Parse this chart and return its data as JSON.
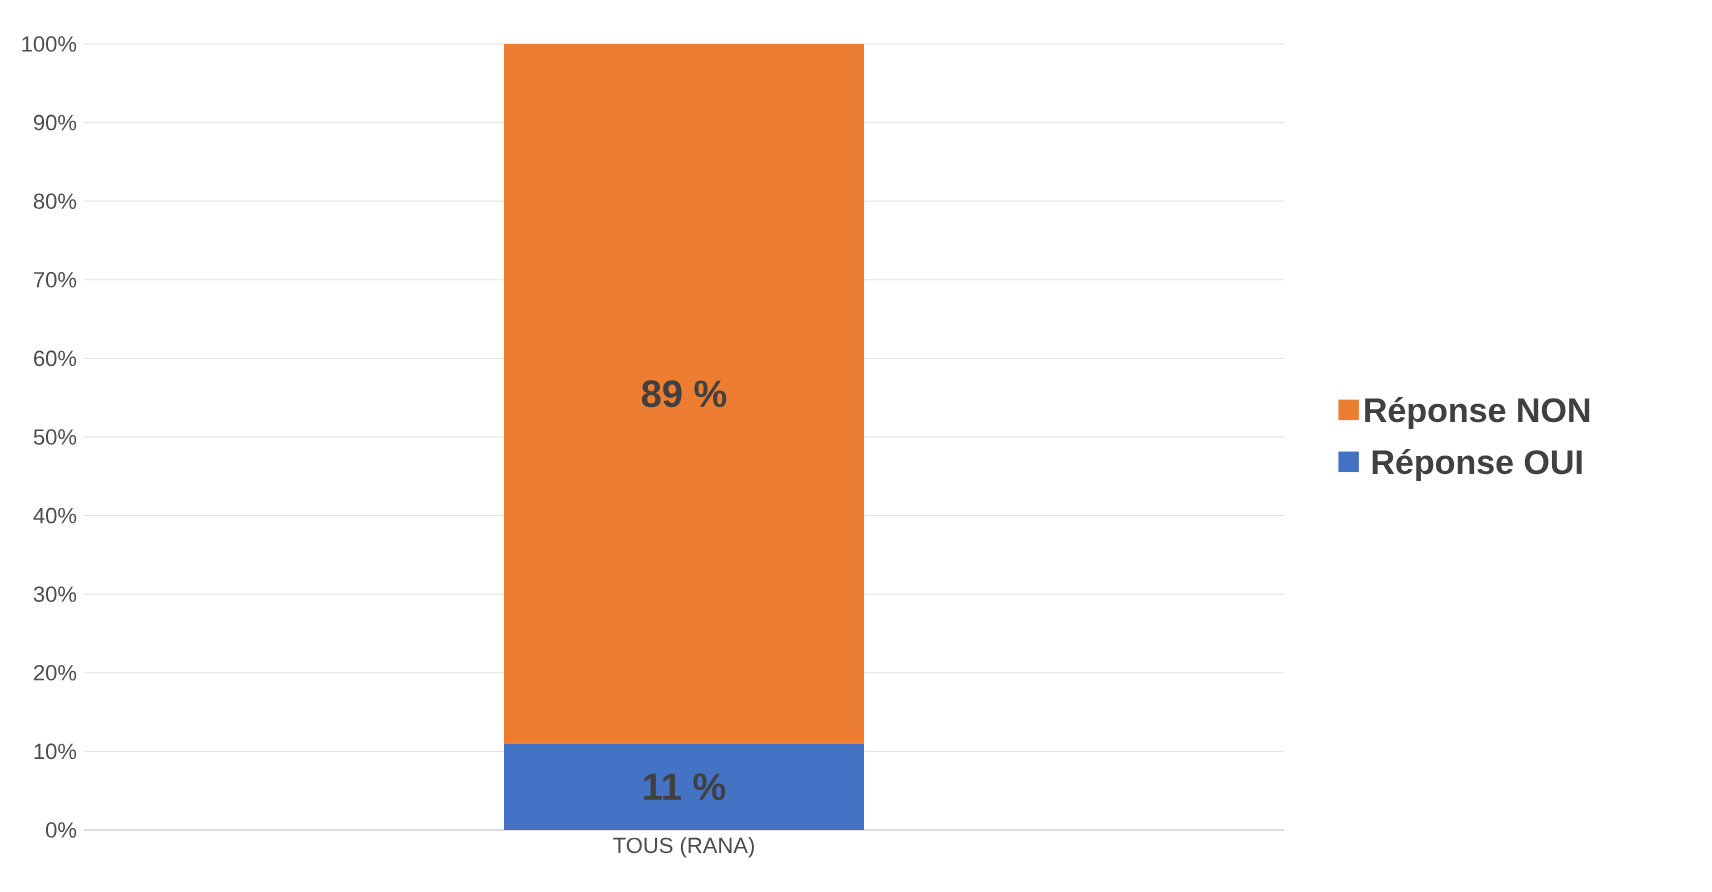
{
  "chart_data": {
    "type": "bar",
    "stacked": true,
    "categories": [
      "TOUS (RANA)"
    ],
    "series": [
      {
        "name": "Réponse OUI",
        "color": "#4472c4",
        "values": [
          11
        ],
        "value_labels": [
          "11 %"
        ]
      },
      {
        "name": "Réponse NON",
        "color": "#ed7d31",
        "values": [
          89
        ],
        "value_labels": [
          "89 %"
        ]
      }
    ],
    "ylim": [
      0,
      100
    ],
    "yticks": [
      {
        "value": 0,
        "label": "0%"
      },
      {
        "value": 10,
        "label": "10%"
      },
      {
        "value": 20,
        "label": "20%"
      },
      {
        "value": 30,
        "label": "30%"
      },
      {
        "value": 40,
        "label": "40%"
      },
      {
        "value": 50,
        "label": "50%"
      },
      {
        "value": 60,
        "label": "60%"
      },
      {
        "value": 70,
        "label": "70%"
      },
      {
        "value": 80,
        "label": "80%"
      },
      {
        "value": 90,
        "label": "90%"
      },
      {
        "value": 100,
        "label": "100%"
      }
    ],
    "grid": "y",
    "legend": "right"
  }
}
